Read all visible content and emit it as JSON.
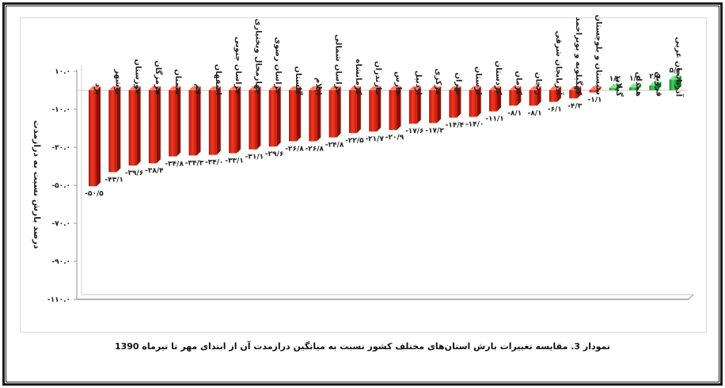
{
  "caption": "نمودار 3. مقایسه تغییرات بارش استان‌های مختلف کشور نسبت به میانگین درازمدت آن از ابتدای مهر تا تیرماه 1390",
  "colors": {
    "negative": "#e02010",
    "positive": "#1faa3a",
    "axis": "#9a9a9a"
  },
  "chart_data": {
    "type": "bar",
    "ylabel": "درصد بارش نسبت به درازمدت",
    "ylim": [
      -110,
      10
    ],
    "yticks": [
      10,
      -10,
      -30,
      -50,
      -70,
      -90,
      -110
    ],
    "ytick_labels": [
      "۱۰.۰",
      "-۱۰.۰",
      "-۳۰.۰",
      "-۵۰.۰",
      "-۷۰.۰",
      "-۹۰.۰",
      "-۱۱۰.۰"
    ],
    "categories": [
      "یزد",
      "بوشهر",
      "خوزستان",
      "هرمزگان",
      "سمنان",
      "قم",
      "اصفهان",
      "خراسان جنوبی",
      "چهارمحال وبختیاری",
      "خراسان رضوی",
      "گلستان",
      "ایلام",
      "خراسان شمالی",
      "کرمانشاه",
      "مازندران",
      "فارس",
      "اردبیل",
      "مرکزی",
      "تهران",
      "لرستان",
      "کردستان",
      "کرمان",
      "زنجان",
      "آذربایجان شرقی",
      "کهگیلویه و بویراحمد",
      "سیستان و بلوچستان",
      "گیلان",
      "همدان",
      "قزوین",
      "آذربایجان غربی"
    ],
    "values": [
      -50.5,
      -43.1,
      -39.6,
      -38.4,
      -34.8,
      -34.3,
      -34.0,
      -33.1,
      -31.1,
      -29.6,
      -26.8,
      -26.8,
      -24.8,
      -22.5,
      -21.7,
      -20.9,
      -17.6,
      -17.2,
      -14.4,
      -14.0,
      -11.1,
      -8.1,
      -8.1,
      -6.1,
      -4.3,
      -1.1,
      1.2,
      1.5,
      2.5,
      5.6
    ],
    "value_labels": [
      "-۵۰/۵",
      "-۴۳/۱",
      "-۳۹/۶",
      "-۳۸/۴",
      "-۳۴/۸",
      "-۳۴/۳",
      "-۳۴/۰",
      "-۳۳/۱",
      "-۳۱/۱",
      "-۲۹/۶",
      "-۲۶/۸",
      "-۲۶/۸",
      "-۲۴/۸",
      "-۲۲/۵",
      "-۲۱/۷",
      "-۲۰/۹",
      "-۱۷/۶",
      "-۱۷/۲",
      "-۱۴/۴",
      "-۱۴/۰",
      "-۱۱/۱",
      "-۸/۱",
      "-۸/۱",
      "-۶/۱",
      "-۴/۳",
      "-۱/۱",
      "۱/۲",
      "۱/۵",
      "۲/۵",
      "۵/۶"
    ],
    "grid": false,
    "legend": "none"
  }
}
